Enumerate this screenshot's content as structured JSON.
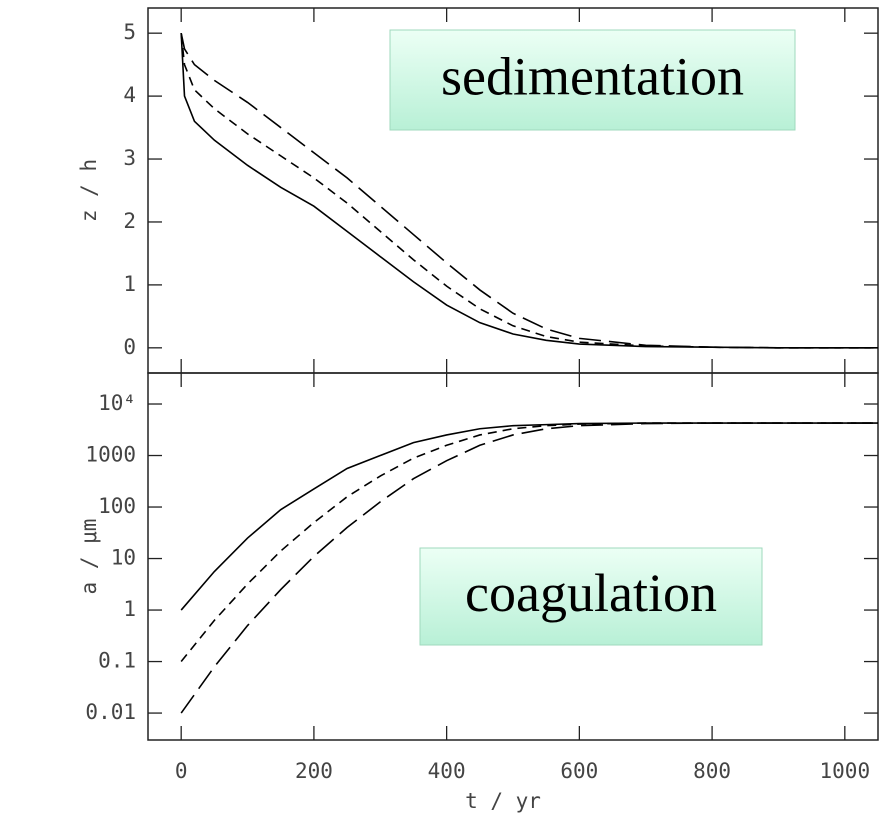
{
  "chart_data": [
    {
      "type": "line",
      "annotation": "sedimentation",
      "ylabel": "z / h",
      "x": [
        0,
        5,
        20,
        50,
        100,
        150,
        200,
        250,
        300,
        350,
        400,
        450,
        500,
        550,
        600,
        700,
        800,
        900,
        1050
      ],
      "series": [
        {
          "color": "#000000",
          "dash": "solid",
          "values": [
            5,
            4.0,
            3.6,
            3.3,
            2.9,
            2.55,
            2.25,
            1.85,
            1.45,
            1.05,
            0.68,
            0.4,
            0.22,
            0.12,
            0.06,
            0.02,
            0.01,
            0,
            0
          ]
        },
        {
          "color": "#000000",
          "dash": "short",
          "values": [
            5,
            4.5,
            4.1,
            3.8,
            3.4,
            3.05,
            2.7,
            2.3,
            1.85,
            1.4,
            0.98,
            0.62,
            0.35,
            0.18,
            0.09,
            0.03,
            0.01,
            0,
            0
          ]
        },
        {
          "color": "#000000",
          "dash": "long",
          "values": [
            5,
            4.75,
            4.5,
            4.25,
            3.9,
            3.5,
            3.1,
            2.7,
            2.25,
            1.8,
            1.35,
            0.92,
            0.55,
            0.3,
            0.15,
            0.04,
            0.01,
            0,
            0
          ]
        }
      ],
      "xlim": [
        -50,
        1050
      ],
      "xticks": [
        0,
        200,
        400,
        600,
        800,
        1000
      ],
      "show_xtick_labels": false,
      "ylim": [
        -0.4,
        5.4
      ],
      "yticks": [
        0,
        1,
        2,
        3,
        4,
        5
      ],
      "log_y": false
    },
    {
      "type": "line",
      "annotation": "coagulation",
      "ylabel": "a / μm",
      "xlabel": "t / yr",
      "x": [
        0,
        50,
        100,
        150,
        200,
        250,
        300,
        350,
        400,
        450,
        500,
        550,
        600,
        700,
        800,
        1050
      ],
      "series": [
        {
          "color": "#000000",
          "dash": "solid",
          "values": [
            1,
            5.6,
            25,
            89,
            224,
            560,
            1000,
            1780,
            2510,
            3310,
            3800,
            3980,
            4170,
            4270,
            4270,
            4270
          ]
        },
        {
          "color": "#000000",
          "dash": "short",
          "values": [
            0.1,
            0.63,
            3.2,
            14,
            50,
            158,
            400,
            890,
            1580,
            2510,
            3310,
            3800,
            4070,
            4270,
            4270,
            4270
          ]
        },
        {
          "color": "#000000",
          "dash": "long",
          "values": [
            0.01,
            0.079,
            0.5,
            2.5,
            11,
            40,
            126,
            355,
            794,
            1580,
            2510,
            3310,
            3800,
            4170,
            4270,
            4270
          ]
        }
      ],
      "xlim": [
        -50,
        1050
      ],
      "xticks": [
        0,
        200,
        400,
        600,
        800,
        1000
      ],
      "show_xtick_labels": true,
      "ylim": [
        0.003,
        40000
      ],
      "yticks": [
        {
          "value": 10000,
          "label": "10⁴"
        },
        1000,
        100,
        10,
        1,
        0.1,
        0.01
      ],
      "log_y": true
    }
  ]
}
